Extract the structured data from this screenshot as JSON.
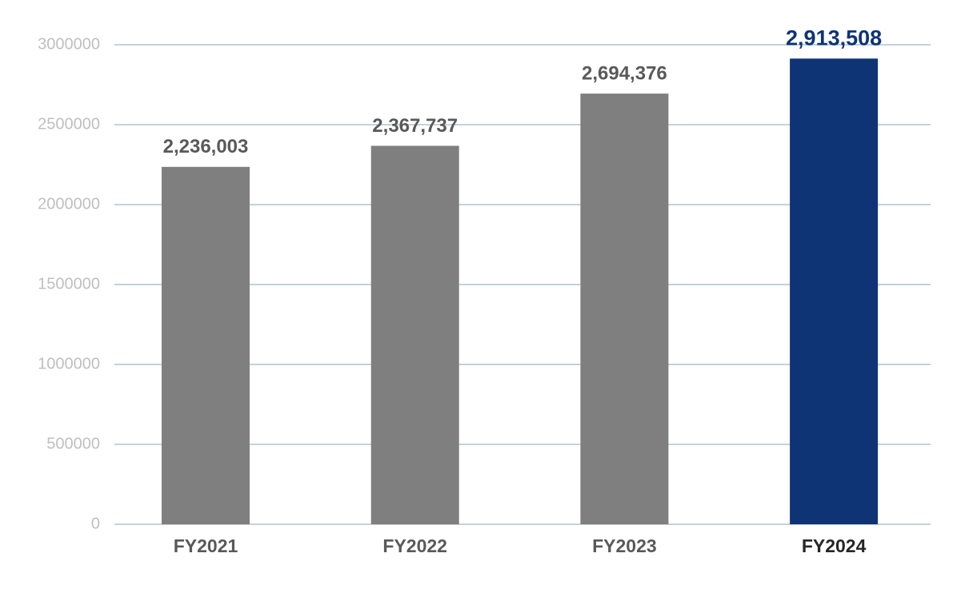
{
  "chart_data": {
    "type": "bar",
    "categories": [
      "FY2021",
      "FY2022",
      "FY2023",
      "FY2024"
    ],
    "values": [
      2236003,
      2367737,
      2694376,
      2913508
    ],
    "value_labels": [
      "2,236,003",
      "2,367,737",
      "2,694,376",
      "2,913,508"
    ],
    "colors": [
      "#7f7f7f",
      "#7f7f7f",
      "#7f7f7f",
      "#0e3476"
    ],
    "ylim": [
      0,
      3000000
    ],
    "yticks": [
      0,
      500000,
      1000000,
      1500000,
      2000000,
      2500000,
      3000000
    ],
    "grid": true
  }
}
